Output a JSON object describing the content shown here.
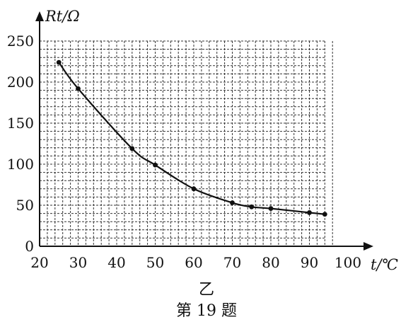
{
  "chart_data": {
    "type": "line",
    "xlabel": "t/℃",
    "ylabel": "Rt/Ω",
    "xlim": [
      20,
      100
    ],
    "ylim": [
      0,
      250
    ],
    "x_ticks": [
      20,
      30,
      40,
      50,
      60,
      70,
      80,
      90,
      100
    ],
    "y_ticks": [
      0,
      50,
      100,
      150,
      200,
      250
    ],
    "grid": true,
    "series": [
      {
        "x": [
          25,
          30,
          44,
          50,
          60,
          70,
          75,
          80,
          90,
          94
        ],
        "values": [
          224,
          192,
          119,
          99,
          70,
          53,
          48,
          46,
          41,
          39
        ]
      }
    ]
  },
  "captions": {
    "sub": "乙",
    "figure": "第 19 题"
  }
}
